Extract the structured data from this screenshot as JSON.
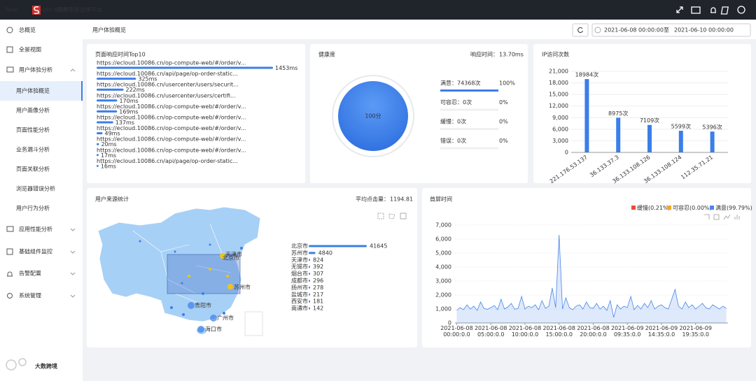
{
  "header": {
    "brand_prefix": "Real",
    "brand_suffix": "ight APM",
    "platform": "应用智能运维平台"
  },
  "sidebar": {
    "menu": [
      "总概览",
      "全景视图",
      "用户体验分析",
      "应用性能分析",
      "基础组件监控",
      "告警配置",
      "系统管理"
    ],
    "submenu": [
      "用户体验概览",
      "用户画像分析",
      "页面性能分析",
      "业务漏斗分析",
      "页面关联分析",
      "浏览器错误分析",
      "用户行为分析"
    ],
    "active_index": 0
  },
  "topbar": {
    "breadcrumb": "用户体验概览",
    "start": "2021-06-08 00:00:00",
    "separator": "至",
    "end": "2021-06-10 00:00:00"
  },
  "health": {
    "title": "健康度",
    "response_label": "响应时间：",
    "response_value": "13.70ms",
    "score": 100,
    "score_label": "100分",
    "items": [
      {
        "label": "满意：74368次",
        "percent": 100,
        "percent_label": "100%",
        "color": "#3b7fe8"
      },
      {
        "label": "可容忍：0次",
        "percent": 0,
        "percent_label": "0%",
        "color": "#f5a623"
      },
      {
        "label": "缓慢：0次",
        "percent": 0,
        "percent_label": "0%",
        "color": "#f5a623"
      },
      {
        "label": "错误：0次",
        "percent": 0,
        "percent_label": "0%",
        "color": "#e84c3d"
      }
    ]
  },
  "map": {
    "labels": [
      "天津市",
      "北京市",
      "苏州市",
      "贵阳市",
      "广州市",
      "海口市"
    ]
  },
  "watermark": "大数跨境",
  "chart_data": [
    {
      "type": "hbar",
      "title": "页面响应时间Top10",
      "color": "#3b7fe8",
      "categories": [
        "https://ecloud.10086.cn/op-compute-web/#/order/v...",
        "https://ecloud.10086.cn/api/page/op-order-static...",
        "https://ecloud.10086.cn/usercenter/users/securit...",
        "https://ecloud.10086.cn/usercenter/users/certifi...",
        "https://ecloud.10086.cn/op-compute-web/#/order/v...",
        "https://ecloud.10086.cn/op-compute-web/#/order/v...",
        "https://ecloud.10086.cn/op-compute-web/#/order/v...",
        "https://ecloud.10086.cn/op-compute-web/#/order/v...",
        "https://ecloud.10086.cn/op-compute-web/#/order/v...",
        "https://ecloud.10086.cn/api/page/op-order-static..."
      ],
      "values": [
        1453,
        325,
        222,
        170,
        169,
        137,
        49,
        20,
        17,
        16
      ],
      "value_labels": [
        "1453ms",
        "325ms",
        "222ms",
        "170ms",
        "169ms",
        "137ms",
        "49ms",
        "20ms",
        "17ms",
        "16ms"
      ]
    },
    {
      "type": "bar",
      "title": "IP访问次数",
      "color": "#3b7fe8",
      "categories": [
        "221.176.53.137",
        "36.133.37.3",
        "36.133.108.126",
        "36.133.108.124",
        "112.35.71.21"
      ],
      "values": [
        18984,
        8975,
        7109,
        5599,
        5396
      ],
      "value_labels": [
        "18984次",
        "8975次",
        "7109次",
        "5599次",
        "5396次"
      ],
      "ylim": [
        0,
        21000
      ],
      "yticks": [
        0,
        {
          "value": 3000,
          "label": "3,000"
        },
        {
          "value": 6000,
          "label": "6,000"
        },
        {
          "value": 9000,
          "label": "9,000"
        },
        {
          "value": 12000,
          "label": "12,000"
        },
        {
          "value": 15000,
          "label": "15,000"
        },
        {
          "value": 18000,
          "label": "18,000"
        },
        {
          "value": 21000,
          "label": "21,000"
        }
      ],
      "grid": true
    },
    {
      "type": "citybar",
      "title": "用户来源统计",
      "avg_label": "平均点击量：",
      "avg_value": 1194.81,
      "color": "#3b7fe8",
      "categories": [
        "北京市",
        "苏州市",
        "天津市",
        "无锡市",
        "烟台市",
        "成都市",
        "扬州市",
        "盐城市",
        "西安市",
        "南通市"
      ],
      "values": [
        41645,
        4840,
        824,
        392,
        307,
        296,
        278,
        217,
        181,
        142
      ]
    },
    {
      "type": "line",
      "title": "首屏时间",
      "color": "#4a86e8",
      "legend": [
        {
          "name": "缓慢(0.21%)",
          "color": "#e84c3d"
        },
        {
          "name": "可容忍(0.00%)",
          "color": "#f5a623"
        },
        {
          "name": "满意(99.79%)",
          "color": "#4a86e8"
        }
      ],
      "categories": [
        "2021-06-08 00:00:0.0",
        null,
        null,
        null,
        null,
        null,
        null,
        null,
        null,
        null,
        "2021-06-08 05:00:0.0",
        null,
        null,
        null,
        null,
        null,
        null,
        null,
        null,
        null,
        "2021-06-08 10:00:0.0",
        null,
        null,
        null,
        null,
        null,
        null,
        null,
        null,
        null,
        "2021-06-08 15:00:0.0",
        null,
        null,
        null,
        null,
        null,
        null,
        null,
        null,
        null,
        "2021-06-08 20:00:0.0",
        null,
        null,
        null,
        null,
        null,
        null,
        null,
        null,
        null,
        "2021-06-09 09:35:0.0",
        null,
        null,
        null,
        null,
        null,
        null,
        null,
        null,
        null,
        "2021-06-09 14:35:0.0",
        null,
        null,
        null,
        null,
        null,
        null,
        null,
        null,
        null,
        "2021-06-09 19:35:0.0",
        null,
        null,
        null,
        null,
        null,
        null,
        null,
        null,
        null
      ],
      "values": [
        900,
        1100,
        950,
        1300,
        1000,
        1200,
        900,
        1500,
        1050,
        980,
        1100,
        1250,
        950,
        1700,
        1000,
        1150,
        1400,
        980,
        1050,
        1900,
        1000,
        1200,
        1100,
        1300,
        950,
        1600,
        1050,
        1200,
        2500,
        1100,
        6300,
        1000,
        1800,
        1100,
        950,
        1200,
        1300,
        1000,
        1500,
        1100,
        1050,
        1400,
        1000,
        1200,
        900,
        1600,
        400,
        1300,
        1000,
        1200,
        1100,
        1900,
        950,
        1250,
        1000,
        1400,
        1100,
        1600,
        1000,
        1200,
        1300,
        1100,
        1000,
        1700,
        2400,
        1200,
        1000,
        1500,
        1100,
        1300,
        1000,
        1200,
        1400,
        1100,
        1000,
        1300,
        1150,
        1000,
        1200,
        1050
      ],
      "ylim": [
        0,
        7000
      ],
      "yticks": [
        0,
        {
          "value": 1000,
          "label": "1,000"
        },
        {
          "value": 2000,
          "label": "2,000"
        },
        {
          "value": 3000,
          "label": "3,000"
        },
        {
          "value": 4000,
          "label": "4,000"
        },
        {
          "value": 5000,
          "label": "5,000"
        },
        {
          "value": 6000,
          "label": "6,000"
        },
        {
          "value": 7000,
          "label": "7,000"
        }
      ],
      "grid": true
    }
  ]
}
